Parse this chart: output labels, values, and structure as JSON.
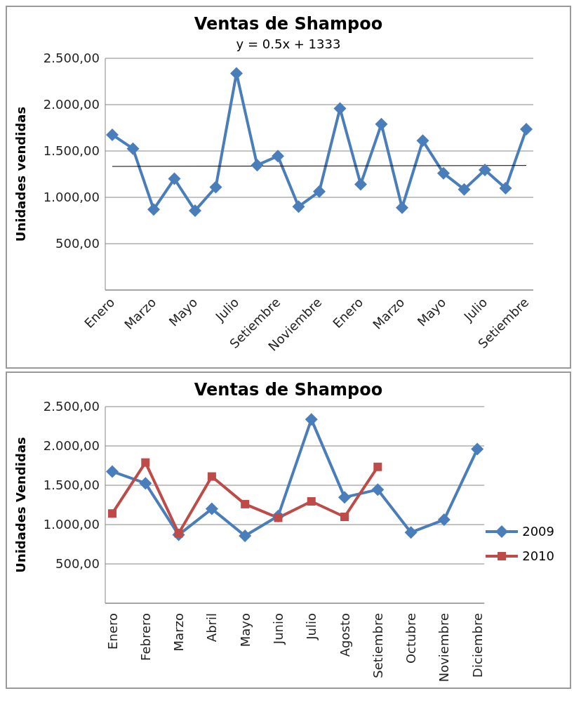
{
  "chart_data": [
    {
      "type": "line",
      "title": "Ventas de Shampoo",
      "annotations": [
        "y = 0.5x + 1333"
      ],
      "ylabel": "Unidades vendidas",
      "categories": [
        "Enero",
        null,
        "Marzo",
        null,
        "Mayo",
        null,
        "Julio",
        null,
        "Setiembre",
        null,
        "Noviembre",
        null,
        "Enero",
        null,
        "Marzo",
        null,
        "Mayo",
        null,
        "Julio",
        null,
        "Setiembre"
      ],
      "series": [
        {
          "color": "#4a7ebb",
          "marker": "diamond",
          "values": [
            1675,
            1525,
            870,
            1200,
            857,
            1110,
            2338,
            1347,
            1445,
            900,
            1062,
            1959,
            1141,
            1789,
            889,
            1611,
            1260,
            1086,
            1295,
            1098,
            1734
          ]
        },
        {
          "color": "#000000",
          "marker": "none",
          "values": [
            1333.5,
            null,
            null,
            null,
            null,
            null,
            null,
            null,
            null,
            null,
            null,
            null,
            null,
            null,
            null,
            null,
            null,
            null,
            null,
            null,
            1343.5
          ]
        }
      ],
      "ylim": [
        0,
        2500
      ],
      "yticks": [
        {
          "value": 500,
          "label": "500,00"
        },
        {
          "value": 1000,
          "label": "1.000,00"
        },
        {
          "value": 1500,
          "label": "1.500,00"
        },
        {
          "value": 2000,
          "label": "2.000,00"
        },
        {
          "value": 2500,
          "label": "2.500,00"
        }
      ],
      "grid": "y"
    },
    {
      "type": "line",
      "title": "Ventas de Shampoo",
      "ylabel": "Unidades Vendidas",
      "categories": [
        "Enero",
        "Febrero",
        "Marzo",
        "Abril",
        "Mayo",
        "Junio",
        "Julio",
        "Agosto",
        "Setiembre",
        "Octubre",
        "Noviembre",
        "Diciembre"
      ],
      "series": [
        {
          "name": "2009",
          "color": "#4a7ebb",
          "marker": "diamond",
          "values": [
            1675,
            1525,
            870,
            1200,
            857,
            1110,
            2338,
            1347,
            1445,
            900,
            1062,
            1959
          ]
        },
        {
          "name": "2010",
          "color": "#be4b48",
          "marker": "square",
          "values": [
            1141,
            1789,
            889,
            1611,
            1260,
            1086,
            1295,
            1098,
            1734,
            null,
            null,
            null
          ]
        }
      ],
      "ylim": [
        0,
        2500
      ],
      "yticks": [
        {
          "value": 500,
          "label": "500,00"
        },
        {
          "value": 1000,
          "label": "1.000,00"
        },
        {
          "value": 1500,
          "label": "1.500,00"
        },
        {
          "value": 2000,
          "label": "2.000,00"
        },
        {
          "value": 2500,
          "label": "2.500,00"
        }
      ],
      "grid": "y",
      "legend": "right"
    }
  ]
}
